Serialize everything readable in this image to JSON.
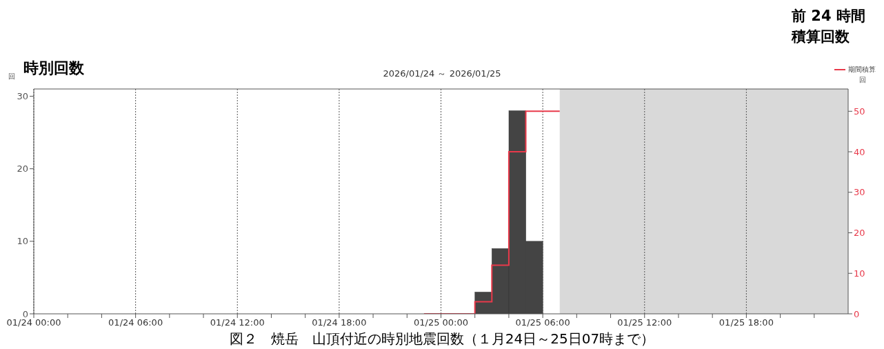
{
  "chart_data": {
    "type": "bar",
    "title": "2026/01/24 ～ 2026/01/25",
    "ylabel": "回",
    "y2label": "回",
    "annotations": [
      "時別回数",
      "前 24 時間",
      "積算回数",
      "図２　焼岳　山頂付近の時別地震回数（１月24日～25日07時まで）"
    ],
    "series": [
      {
        "type": "bar",
        "color": "#444444",
        "x": [
          "2026-01-25T02:30",
          "2026-01-25T03:30",
          "2026-01-25T04:30",
          "2026-01-25T05:30"
        ],
        "values": [
          3,
          9,
          28,
          10
        ]
      },
      {
        "type": "step",
        "name": "期間積算",
        "axis": "y2",
        "color": "#e8394a",
        "x": [
          "2026-01-24T23:00",
          "2026-01-25T02:00",
          "2026-01-25T03:00",
          "2026-01-25T04:00",
          "2026-01-25T05:00",
          "2026-01-25T07:00"
        ],
        "values": [
          0,
          3,
          12,
          40,
          50,
          50
        ]
      }
    ],
    "xlim": [
      "2026-01-24T00:00",
      "2026-01-26T00:00"
    ],
    "xticks": [
      {
        "value": "2026-01-24T00:00",
        "label": "01/24 00:00"
      },
      {
        "value": "2026-01-24T02:00",
        "label": null
      },
      {
        "value": "2026-01-24T04:00",
        "label": null
      },
      {
        "value": "2026-01-24T06:00",
        "label": "01/24 06:00"
      },
      {
        "value": "2026-01-24T08:00",
        "label": null
      },
      {
        "value": "2026-01-24T10:00",
        "label": null
      },
      {
        "value": "2026-01-24T12:00",
        "label": "01/24 12:00"
      },
      {
        "value": "2026-01-24T14:00",
        "label": null
      },
      {
        "value": "2026-01-24T16:00",
        "label": null
      },
      {
        "value": "2026-01-24T18:00",
        "label": "01/24 18:00"
      },
      {
        "value": "2026-01-24T20:00",
        "label": null
      },
      {
        "value": "2026-01-24T22:00",
        "label": null
      },
      {
        "value": "2026-01-25T00:00",
        "label": "01/25 00:00"
      },
      {
        "value": "2026-01-25T02:00",
        "label": null
      },
      {
        "value": "2026-01-25T04:00",
        "label": null
      },
      {
        "value": "2026-01-25T06:00",
        "label": "01/25 06:00"
      },
      {
        "value": "2026-01-25T08:00",
        "label": null
      },
      {
        "value": "2026-01-25T10:00",
        "label": null
      },
      {
        "value": "2026-01-25T12:00",
        "label": "01/25 12:00"
      },
      {
        "value": "2026-01-25T14:00",
        "label": null
      },
      {
        "value": "2026-01-25T16:00",
        "label": null
      },
      {
        "value": "2026-01-25T18:00",
        "label": "01/25 18:00"
      },
      {
        "value": "2026-01-25T20:00",
        "label": null
      },
      {
        "value": "2026-01-25T22:00",
        "label": null
      }
    ],
    "ylim": [
      0,
      31
    ],
    "yticks": [
      0,
      10,
      20,
      30
    ],
    "y2lim": [
      0,
      55.5
    ],
    "y2ticks": [
      0,
      10,
      20,
      30,
      40,
      50
    ],
    "bands": [
      {
        "axis": "x",
        "from": "2026-01-25T07:00",
        "to": "2026-01-26T00:00",
        "color": "#d9d9d9"
      }
    ],
    "grid": "x",
    "legend": "top right"
  }
}
